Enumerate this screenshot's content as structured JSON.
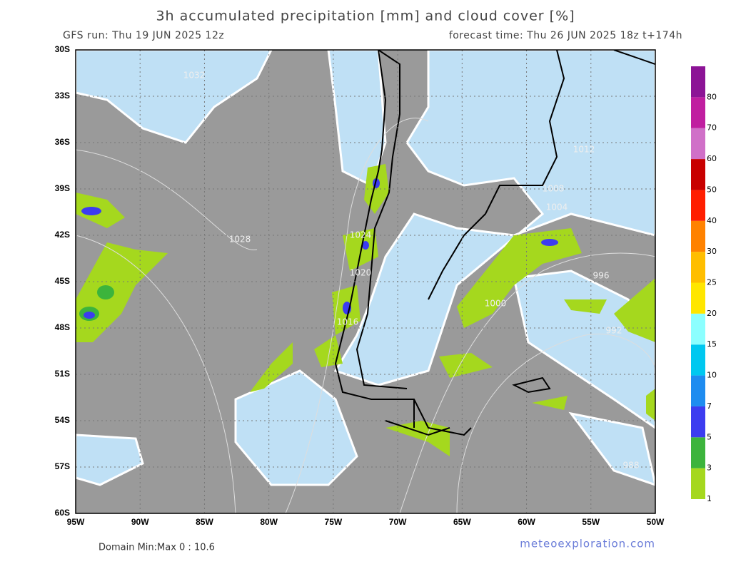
{
  "header": {
    "title": "3h accumulated precipitation [mm] and cloud cover [%]",
    "run": "GFS run: Thu 19 JUN 2025 12z",
    "forecast": "forecast time: Thu 26 JUN 2025 18z  t+174h"
  },
  "map": {
    "lat_labels": [
      "30S",
      "33S",
      "36S",
      "39S",
      "42S",
      "45S",
      "48S",
      "51S",
      "54S",
      "57S",
      "60S"
    ],
    "lon_labels": [
      "95W",
      "90W",
      "85W",
      "80W",
      "75W",
      "70W",
      "65W",
      "60W",
      "55W",
      "50W"
    ],
    "isobars": [
      "1032",
      "1028",
      "1024",
      "1020",
      "1016",
      "1012",
      "1008",
      "1004",
      "1000",
      "996",
      "992",
      "988"
    ]
  },
  "colorbar": {
    "labels": [
      "1",
      "3",
      "5",
      "7",
      "10",
      "15",
      "20",
      "25",
      "30",
      "40",
      "50",
      "60",
      "70",
      "80"
    ],
    "colors": [
      "#a5d81e",
      "#3cb43c",
      "#3c3cf0",
      "#1e8cf0",
      "#00c8f0",
      "#8cffff",
      "#ffe600",
      "#ffbe00",
      "#ff8200",
      "#ff1e00",
      "#c80000",
      "#d070c8",
      "#c01ea0",
      "#8c1496"
    ]
  },
  "footer": {
    "minmax": "Domain Min:Max 0 : 10.6",
    "site": "meteoexploration.com"
  }
}
